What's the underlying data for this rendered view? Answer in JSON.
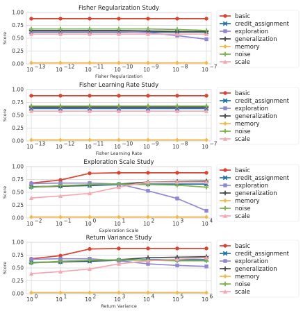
{
  "chart_data": [
    {
      "type": "line",
      "title": "Fisher Regularization Study",
      "xlabel": "Fisher Regularization",
      "ylabel": "Score",
      "xscale": "log",
      "x": [
        "1e-13",
        "1e-12",
        "1e-11",
        "1e-10",
        "1e-9",
        "1e-8",
        "1e-7"
      ],
      "x_tick_labels": [
        "10",
        "10",
        "10",
        "10",
        "10",
        "10",
        "10"
      ],
      "x_tick_exponents": [
        "−13",
        "−12",
        "−11",
        "−10",
        "−9",
        "−8",
        "−7"
      ],
      "ylim": [
        0,
        1.0
      ],
      "y_ticks": [
        "0.00",
        "0.25",
        "0.50",
        "0.75",
        "1.00"
      ],
      "grid": true,
      "legend_position": "outside-right",
      "series": [
        {
          "name": "basic",
          "values": [
            0.88,
            0.88,
            0.88,
            0.88,
            0.88,
            0.88,
            0.88
          ]
        },
        {
          "name": "credit_assignment",
          "values": [
            0.62,
            0.62,
            0.62,
            0.62,
            0.62,
            0.62,
            0.62
          ]
        },
        {
          "name": "exploration",
          "values": [
            0.63,
            0.63,
            0.63,
            0.63,
            0.61,
            0.55,
            0.48
          ]
        },
        {
          "name": "generalization",
          "values": [
            0.65,
            0.65,
            0.65,
            0.65,
            0.64,
            0.63,
            0.63
          ]
        },
        {
          "name": "memory",
          "values": [
            0.02,
            0.02,
            0.02,
            0.02,
            0.02,
            0.02,
            0.02
          ]
        },
        {
          "name": "noise",
          "values": [
            0.68,
            0.68,
            0.68,
            0.68,
            0.68,
            0.67,
            0.65
          ]
        },
        {
          "name": "scale",
          "values": [
            0.58,
            0.58,
            0.58,
            0.58,
            0.58,
            0.58,
            0.58
          ]
        }
      ]
    },
    {
      "type": "line",
      "title": "Fisher Learning Rate Study",
      "xlabel": "Fisher Learning Rate",
      "ylabel": "Score",
      "xscale": "log",
      "x": [
        "1e-13",
        "1e-12",
        "1e-11",
        "1e-10",
        "1e-9",
        "1e-8",
        "1e-7"
      ],
      "x_tick_labels": [
        "10",
        "10",
        "10",
        "10",
        "10",
        "10",
        "10"
      ],
      "x_tick_exponents": [
        "−13",
        "−12",
        "−11",
        "−10",
        "−9",
        "−8",
        "−7"
      ],
      "ylim": [
        0,
        1.0
      ],
      "y_ticks": [
        "0.00",
        "0.25",
        "0.50",
        "0.75",
        "1.00"
      ],
      "grid": true,
      "legend_position": "outside-right",
      "series": [
        {
          "name": "basic",
          "values": [
            0.88,
            0.88,
            0.88,
            0.88,
            0.88,
            0.88,
            0.88
          ]
        },
        {
          "name": "credit_assignment",
          "values": [
            0.63,
            0.63,
            0.63,
            0.63,
            0.63,
            0.63,
            0.63
          ]
        },
        {
          "name": "exploration",
          "values": [
            0.65,
            0.65,
            0.65,
            0.65,
            0.65,
            0.65,
            0.65
          ]
        },
        {
          "name": "generalization",
          "values": [
            0.66,
            0.66,
            0.66,
            0.66,
            0.66,
            0.66,
            0.66
          ]
        },
        {
          "name": "memory",
          "values": [
            0.02,
            0.02,
            0.02,
            0.02,
            0.02,
            0.02,
            0.02
          ]
        },
        {
          "name": "noise",
          "values": [
            0.68,
            0.68,
            0.68,
            0.68,
            0.68,
            0.68,
            0.68
          ]
        },
        {
          "name": "scale",
          "values": [
            0.58,
            0.58,
            0.58,
            0.58,
            0.58,
            0.58,
            0.58
          ]
        }
      ]
    },
    {
      "type": "line",
      "title": "Exploration Scale Study",
      "xlabel": "Exploration Scale",
      "ylabel": "Score",
      "xscale": "log",
      "x": [
        "1e-2",
        "1e-1",
        "1e0",
        "1e1",
        "1e2",
        "1e3",
        "1e4"
      ],
      "x_tick_labels": [
        "10",
        "10",
        "10",
        "10",
        "10",
        "10",
        "10"
      ],
      "x_tick_exponents": [
        "−2",
        "−1",
        "0",
        "1",
        "2",
        "3",
        "4"
      ],
      "ylim": [
        0,
        1.0
      ],
      "y_ticks": [
        "0.00",
        "0.25",
        "0.50",
        "0.75",
        "1.00"
      ],
      "grid": true,
      "legend_position": "outside-right",
      "series": [
        {
          "name": "basic",
          "values": [
            0.68,
            0.74,
            0.87,
            0.88,
            0.88,
            0.88,
            0.88
          ]
        },
        {
          "name": "credit_assignment",
          "values": [
            0.61,
            0.62,
            0.63,
            0.65,
            0.66,
            0.66,
            0.66
          ]
        },
        {
          "name": "exploration",
          "values": [
            0.67,
            0.68,
            0.68,
            0.66,
            0.53,
            0.38,
            0.14
          ]
        },
        {
          "name": "generalization",
          "values": [
            0.6,
            0.62,
            0.64,
            0.66,
            0.7,
            0.71,
            0.72
          ]
        },
        {
          "name": "memory",
          "values": [
            0.02,
            0.02,
            0.02,
            0.02,
            0.02,
            0.02,
            0.02
          ]
        },
        {
          "name": "noise",
          "values": [
            0.6,
            0.63,
            0.65,
            0.66,
            0.65,
            0.64,
            0.6
          ]
        },
        {
          "name": "scale",
          "values": [
            0.39,
            0.43,
            0.48,
            0.6,
            0.7,
            0.7,
            0.7
          ]
        }
      ]
    },
    {
      "type": "line",
      "title": "Return Variance Study",
      "xlabel": "Return Variance",
      "ylabel": "Score",
      "xscale": "log",
      "x": [
        "1e0",
        "1e1",
        "1e2",
        "1e3",
        "1e4",
        "1e5",
        "1e6"
      ],
      "x_tick_labels": [
        "10",
        "10",
        "10",
        "10",
        "10",
        "10",
        "10"
      ],
      "x_tick_exponents": [
        "0",
        "1",
        "2",
        "3",
        "4",
        "5",
        "6"
      ],
      "ylim": [
        0,
        1.0
      ],
      "y_ticks": [
        "0.00",
        "0.25",
        "0.50",
        "0.75",
        "1.00"
      ],
      "grid": true,
      "legend_position": "outside-right",
      "series": [
        {
          "name": "basic",
          "values": [
            0.68,
            0.74,
            0.87,
            0.88,
            0.88,
            0.88,
            0.88
          ]
        },
        {
          "name": "credit_assignment",
          "values": [
            0.61,
            0.62,
            0.63,
            0.65,
            0.66,
            0.66,
            0.66
          ]
        },
        {
          "name": "exploration",
          "values": [
            0.67,
            0.68,
            0.68,
            0.64,
            0.58,
            0.55,
            0.53
          ]
        },
        {
          "name": "generalization",
          "values": [
            0.6,
            0.62,
            0.64,
            0.66,
            0.7,
            0.71,
            0.72
          ]
        },
        {
          "name": "memory",
          "values": [
            0.02,
            0.02,
            0.02,
            0.02,
            0.02,
            0.02,
            0.02
          ]
        },
        {
          "name": "noise",
          "values": [
            0.6,
            0.63,
            0.65,
            0.66,
            0.65,
            0.64,
            0.64
          ]
        },
        {
          "name": "scale",
          "values": [
            0.39,
            0.43,
            0.48,
            0.58,
            0.64,
            0.67,
            0.7
          ]
        }
      ]
    }
  ],
  "series_styles": [
    {
      "name": "basic",
      "color": "#d9432f",
      "marker": "circle"
    },
    {
      "name": "credit_assignment",
      "color": "#1f6fa8",
      "marker": "x"
    },
    {
      "name": "exploration",
      "color": "#8f86d6",
      "marker": "square"
    },
    {
      "name": "generalization",
      "color": "#4a4a4a",
      "marker": "plus"
    },
    {
      "name": "memory",
      "color": "#f2b84b",
      "marker": "diamond"
    },
    {
      "name": "noise",
      "color": "#7ab34a",
      "marker": "plus"
    },
    {
      "name": "scale",
      "color": "#f7a6b0",
      "marker": "triangle"
    }
  ]
}
